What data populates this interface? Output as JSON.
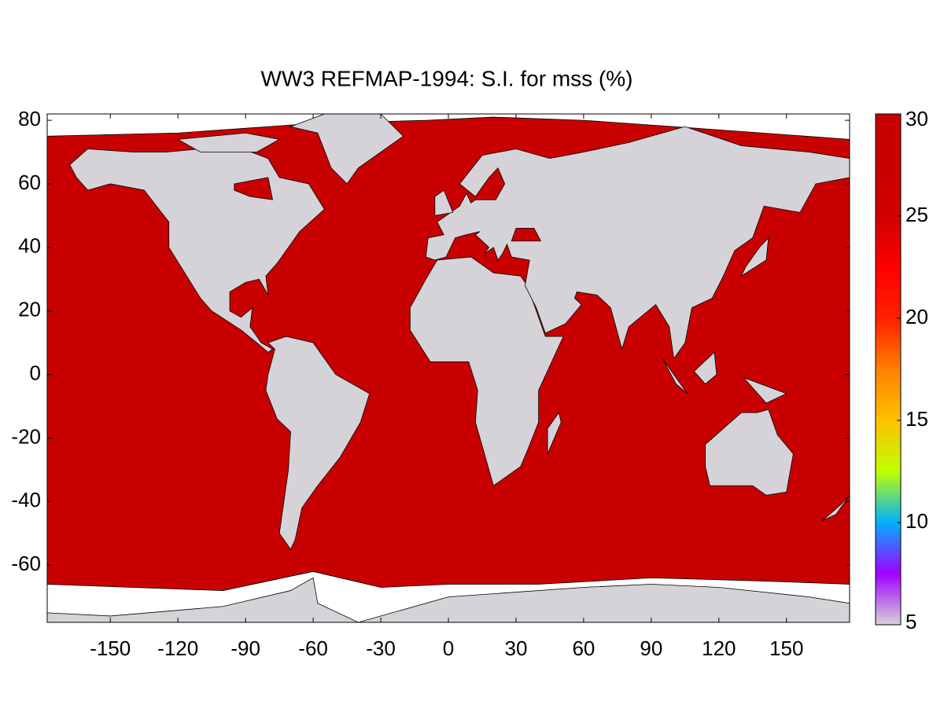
{
  "chart_data": {
    "type": "map",
    "title": "WW3 REFMAP-1994: S.I. for mss (%)",
    "xlim": [
      -178,
      178
    ],
    "ylim": [
      -78,
      82
    ],
    "xticks": [
      -150,
      -120,
      -90,
      -60,
      -30,
      0,
      30,
      60,
      90,
      120,
      150
    ],
    "yticks": [
      -60,
      -40,
      -20,
      0,
      20,
      40,
      60,
      80
    ],
    "ocean_color": "#c80000",
    "land_color": "#d6d3d8",
    "ice_color": "#ffffff",
    "colorbar": {
      "range": [
        5,
        30
      ],
      "ticks": [
        5,
        10,
        15,
        20,
        25,
        30
      ],
      "colors": [
        "#d6d3d8",
        "#a000ff",
        "#00b0ff",
        "#c0ff00",
        "#ffc000",
        "#ff8000",
        "#ff2000",
        "#ff0000",
        "#d00000",
        "#c80000",
        "#c80000"
      ]
    }
  }
}
